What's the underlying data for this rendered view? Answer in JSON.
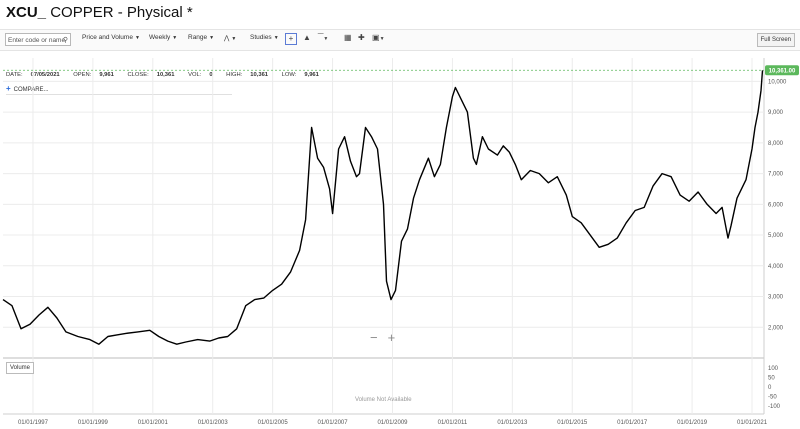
{
  "header": {
    "symbol": "XCU_",
    "name": "COPPER - Physical *"
  },
  "toolbar": {
    "search_placeholder": "Enter code or name",
    "price_volume": "Price and Volume",
    "interval": "Weekly",
    "range": "Range",
    "studies": "Studies",
    "fullscreen": "Full Screen"
  },
  "info": {
    "date_label": "DATE:",
    "date": "07/05/2021",
    "open_label": "OPEN:",
    "open": "9,961",
    "close_label": "CLOSE:",
    "close": "10,361",
    "vol_label": "VOL:",
    "vol": "0",
    "high_label": "HIGH:",
    "high": "10,361",
    "low_label": "LOW:",
    "low": "9,961"
  },
  "compare_label": "COMPARE...",
  "volume_label": "Volume",
  "volume_na": "Volume Not Available",
  "colors": {
    "line": "#000000",
    "last_price_badge": "#5cb85c",
    "grid": "#ececec"
  },
  "chart_data": {
    "type": "line",
    "title": "",
    "xlabel": "",
    "ylabel": "",
    "ylim": [
      1000,
      10500
    ],
    "xlim": [
      1996.0,
      2021.4
    ],
    "y_ticks": [
      "2,000",
      "3,000",
      "4,000",
      "5,000",
      "6,000",
      "7,000",
      "8,000",
      "9,000",
      "10,000"
    ],
    "x_ticks": [
      "01/01/1997",
      "01/01/1999",
      "01/01/2001",
      "01/01/2003",
      "01/01/2005",
      "01/01/2007",
      "01/01/2009",
      "01/01/2011",
      "01/01/2013",
      "01/01/2015",
      "01/01/2017",
      "01/01/2019",
      "01/01/2021"
    ],
    "last_value_label": "10,361.00",
    "volume_ticks": [
      "100",
      "50",
      "0",
      "-50",
      "-100"
    ],
    "series": [
      {
        "x": [
          1996.0,
          1996.3,
          1996.6,
          1996.9,
          1997.2,
          1997.5,
          1997.8,
          1998.1,
          1998.5,
          1998.9,
          1999.2,
          1999.5,
          1999.8,
          2000.1,
          2000.5,
          2000.9,
          2001.2,
          2001.5,
          2001.8,
          2002.1,
          2002.5,
          2002.9,
          2003.2,
          2003.5,
          2003.8,
          2004.1,
          2004.4,
          2004.7,
          2005.0,
          2005.3,
          2005.6,
          2005.9,
          2006.1,
          2006.3,
          2006.5,
          2006.7,
          2006.9,
          2007.0,
          2007.2,
          2007.4,
          2007.6,
          2007.8,
          2007.9,
          2008.1,
          2008.3,
          2008.5,
          2008.7,
          2008.8,
          2008.95,
          2009.1,
          2009.3,
          2009.5,
          2009.7,
          2009.9,
          2010.2,
          2010.4,
          2010.6,
          2010.8,
          2011.0,
          2011.1,
          2011.3,
          2011.5,
          2011.7,
          2011.8,
          2012.0,
          2012.2,
          2012.5,
          2012.7,
          2012.9,
          2013.1,
          2013.3,
          2013.6,
          2013.9,
          2014.2,
          2014.5,
          2014.8,
          2015.0,
          2015.3,
          2015.6,
          2015.9,
          2016.2,
          2016.5,
          2016.8,
          2017.1,
          2017.4,
          2017.7,
          2018.0,
          2018.3,
          2018.6,
          2018.9,
          2019.2,
          2019.5,
          2019.8,
          2020.0,
          2020.2,
          2020.3,
          2020.5,
          2020.8,
          2021.0,
          2021.1,
          2021.2,
          2021.3,
          2021.35
        ],
        "values": [
          2900,
          2700,
          1950,
          2100,
          2400,
          2650,
          2300,
          1850,
          1700,
          1600,
          1450,
          1700,
          1750,
          1800,
          1850,
          1900,
          1700,
          1550,
          1450,
          1520,
          1600,
          1550,
          1650,
          1700,
          1950,
          2700,
          2900,
          2950,
          3200,
          3400,
          3800,
          4500,
          5500,
          8500,
          7500,
          7200,
          6500,
          5700,
          7800,
          8200,
          7400,
          6900,
          7000,
          8500,
          8200,
          7800,
          6000,
          3500,
          2900,
          3200,
          4800,
          5200,
          6200,
          6800,
          7500,
          6900,
          7300,
          8500,
          9500,
          9800,
          9400,
          9000,
          7500,
          7300,
          8200,
          7800,
          7600,
          7900,
          7700,
          7300,
          6800,
          7100,
          7000,
          6700,
          6900,
          6300,
          5600,
          5400,
          5000,
          4600,
          4700,
          4900,
          5400,
          5800,
          5900,
          6600,
          7000,
          6900,
          6300,
          6100,
          6400,
          6000,
          5700,
          5900,
          4900,
          5300,
          6200,
          6800,
          7800,
          8500,
          9000,
          9700,
          10361
        ]
      }
    ]
  }
}
